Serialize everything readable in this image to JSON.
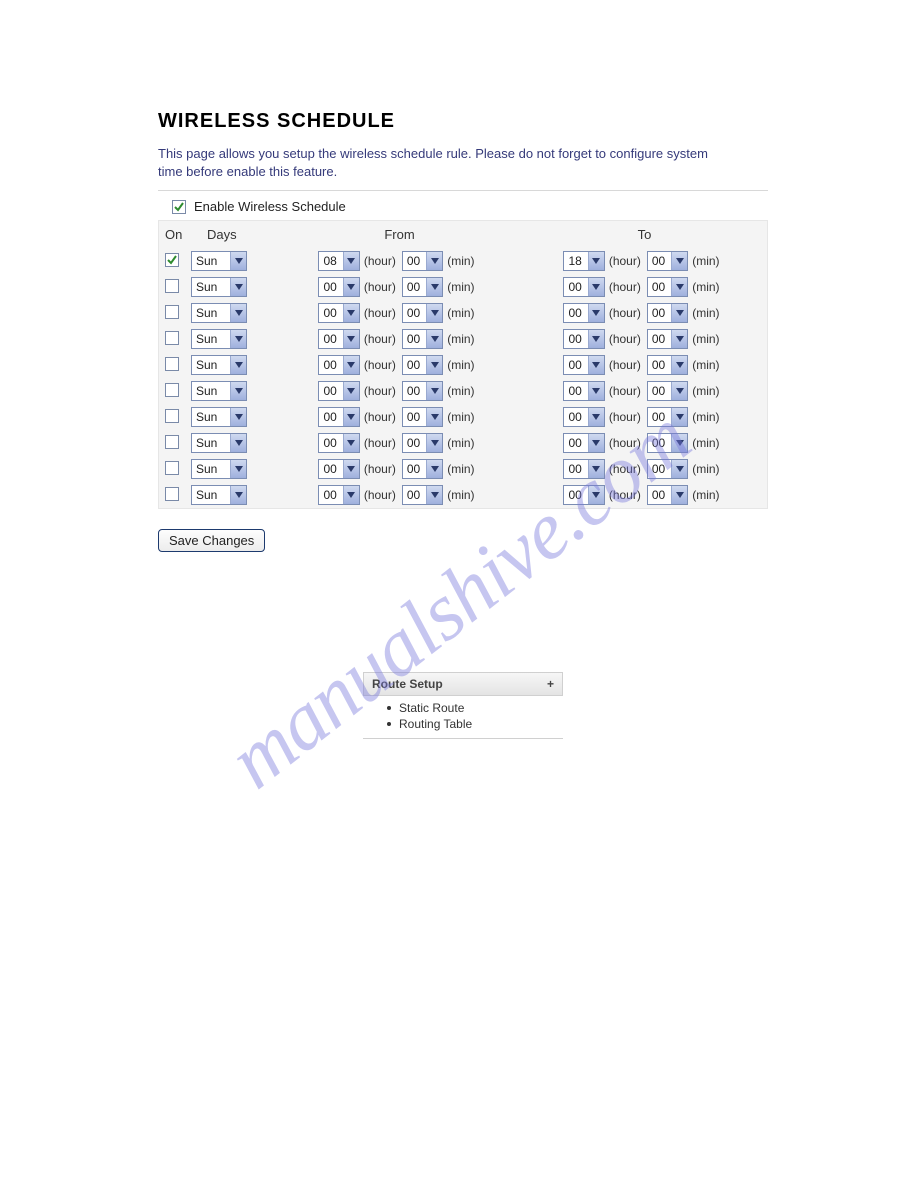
{
  "title": "WIRELESS SCHEDULE",
  "description": "This page allows you setup the wireless schedule rule. Please do not forget to configure system time before enable this feature.",
  "enable_label": "Enable Wireless Schedule",
  "enable_checked": true,
  "headers": {
    "on": "On",
    "days": "Days",
    "from": "From",
    "to": "To"
  },
  "unit_hour": "(hour)",
  "unit_min": "(min)",
  "rows": [
    {
      "on": true,
      "day": "Sun",
      "from_h": "08",
      "from_m": "00",
      "to_h": "18",
      "to_m": "00"
    },
    {
      "on": false,
      "day": "Sun",
      "from_h": "00",
      "from_m": "00",
      "to_h": "00",
      "to_m": "00"
    },
    {
      "on": false,
      "day": "Sun",
      "from_h": "00",
      "from_m": "00",
      "to_h": "00",
      "to_m": "00"
    },
    {
      "on": false,
      "day": "Sun",
      "from_h": "00",
      "from_m": "00",
      "to_h": "00",
      "to_m": "00"
    },
    {
      "on": false,
      "day": "Sun",
      "from_h": "00",
      "from_m": "00",
      "to_h": "00",
      "to_m": "00"
    },
    {
      "on": false,
      "day": "Sun",
      "from_h": "00",
      "from_m": "00",
      "to_h": "00",
      "to_m": "00"
    },
    {
      "on": false,
      "day": "Sun",
      "from_h": "00",
      "from_m": "00",
      "to_h": "00",
      "to_m": "00"
    },
    {
      "on": false,
      "day": "Sun",
      "from_h": "00",
      "from_m": "00",
      "to_h": "00",
      "to_m": "00"
    },
    {
      "on": false,
      "day": "Sun",
      "from_h": "00",
      "from_m": "00",
      "to_h": "00",
      "to_m": "00"
    },
    {
      "on": false,
      "day": "Sun",
      "from_h": "00",
      "from_m": "00",
      "to_h": "00",
      "to_m": "00"
    }
  ],
  "save_label": "Save Changes",
  "route": {
    "title": "Route Setup",
    "expand": "+",
    "items": [
      "Static Route",
      "Routing Table"
    ]
  },
  "watermark": "manualshive.com",
  "colors": {
    "accent_desc": "#353a7a",
    "select_border": "#7b8db3",
    "arrow_top": "#cfd9f0",
    "arrow_bottom": "#9fb0dd",
    "grid_bg": "#f4f4f4",
    "check_green": "#2e8b2e"
  }
}
